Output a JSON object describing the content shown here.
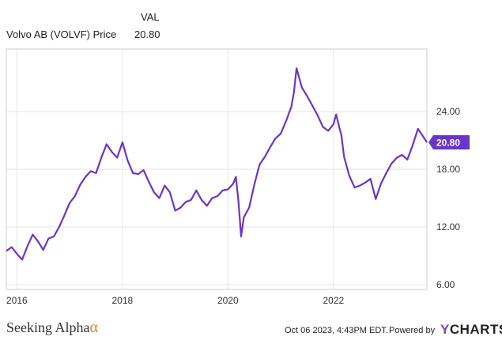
{
  "legend": {
    "column_header": "VAL",
    "series_label": "Volvo AB (VOLVF) Price",
    "series_value": "20.80"
  },
  "chart_data": {
    "type": "line",
    "title": "Volvo AB (VOLVF) Price",
    "xlabel": "",
    "ylabel": "",
    "x_ticks": [
      "2016",
      "2018",
      "2020",
      "2022"
    ],
    "y_ticks": [
      "6.00",
      "12.00",
      "18.00",
      "24.00"
    ],
    "xlim": [
      2015.8,
      2023.77
    ],
    "ylim": [
      5.5,
      30.5
    ],
    "last_value_label": "20.80",
    "line_color": "#6a35c8",
    "series": [
      {
        "name": "Volvo AB (VOLVF) Price",
        "x": [
          2015.8,
          2015.9,
          2016.0,
          2016.1,
          2016.2,
          2016.3,
          2016.4,
          2016.5,
          2016.6,
          2016.7,
          2016.8,
          2016.9,
          2017.0,
          2017.1,
          2017.2,
          2017.3,
          2017.4,
          2017.5,
          2017.6,
          2017.7,
          2017.8,
          2017.9,
          2018.0,
          2018.1,
          2018.2,
          2018.3,
          2018.4,
          2018.5,
          2018.6,
          2018.7,
          2018.8,
          2018.9,
          2019.0,
          2019.1,
          2019.2,
          2019.3,
          2019.4,
          2019.5,
          2019.6,
          2019.7,
          2019.8,
          2019.9,
          2020.0,
          2020.1,
          2020.15,
          2020.2,
          2020.25,
          2020.3,
          2020.4,
          2020.5,
          2020.6,
          2020.7,
          2020.8,
          2020.9,
          2021.0,
          2021.1,
          2021.2,
          2021.25,
          2021.3,
          2021.4,
          2021.5,
          2021.6,
          2021.7,
          2021.8,
          2021.9,
          2022.0,
          2022.05,
          2022.1,
          2022.15,
          2022.2,
          2022.3,
          2022.4,
          2022.5,
          2022.6,
          2022.7,
          2022.8,
          2022.9,
          2023.0,
          2023.1,
          2023.2,
          2023.3,
          2023.4,
          2023.5,
          2023.6,
          2023.7,
          2023.77
        ],
        "values": [
          9.5,
          9.9,
          9.2,
          8.6,
          10.0,
          11.2,
          10.5,
          9.6,
          10.8,
          11.0,
          12.0,
          13.2,
          14.5,
          15.2,
          16.4,
          17.2,
          17.8,
          17.6,
          19.2,
          20.6,
          19.8,
          19.2,
          20.8,
          18.9,
          17.6,
          17.5,
          17.9,
          16.7,
          15.6,
          15.0,
          16.3,
          15.6,
          13.7,
          14.0,
          14.6,
          14.8,
          15.8,
          14.8,
          14.2,
          15.0,
          15.2,
          15.8,
          15.9,
          16.5,
          17.2,
          14.6,
          11.0,
          13.0,
          14.0,
          16.4,
          18.5,
          19.3,
          20.3,
          21.2,
          21.7,
          23.0,
          24.5,
          26.0,
          28.5,
          26.5,
          25.6,
          24.6,
          23.6,
          22.4,
          22.0,
          22.7,
          23.7,
          22.6,
          21.5,
          19.3,
          17.3,
          16.1,
          16.3,
          16.6,
          17.0,
          14.9,
          16.5,
          17.6,
          18.6,
          19.2,
          19.5,
          19.0,
          20.5,
          22.2,
          21.4,
          20.8
        ]
      }
    ]
  },
  "footer": {
    "brand_text": "Seeking Alpha",
    "brand_alpha": "α",
    "timestamp": "Oct 06 2023, 4:43PM EDT.",
    "powered_by": "Powered by",
    "ycharts_y": "Y",
    "ycharts_rest": "CHARTS"
  }
}
